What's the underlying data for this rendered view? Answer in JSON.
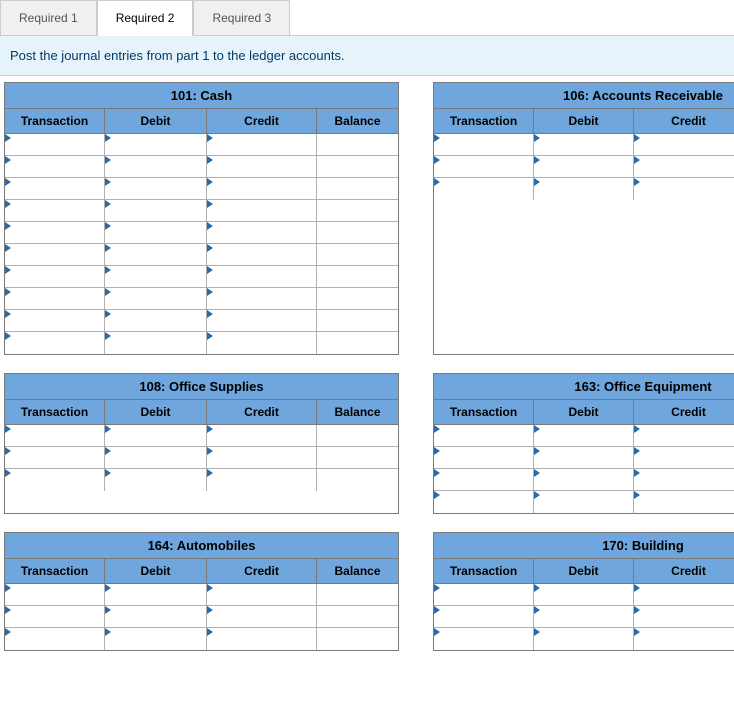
{
  "colors": {
    "header_bg": "#6ea6dd",
    "header_bg_alt": "#6ea6dd",
    "caret": "#2b6aa8",
    "border": "#7a7a7a",
    "row_border": "#b0b0b0",
    "tab_inactive_bg": "#f0f0f0",
    "instruction_bg": "#e6f3fb",
    "instruction_text": "#003a6a"
  },
  "tabs": [
    {
      "label": "Required 1",
      "active": false
    },
    {
      "label": "Required 2",
      "active": true
    },
    {
      "label": "Required 3",
      "active": false
    }
  ],
  "instruction": "Post the journal entries from part 1 to the ledger accounts.",
  "columns": {
    "transaction": "Transaction",
    "debit": "Debit",
    "credit": "Credit",
    "balance": "Balance"
  },
  "col_widths_left": {
    "transaction": 100,
    "debit": 102,
    "credit": 110,
    "balance": 81
  },
  "col_widths_right": {
    "transaction": 100,
    "debit": 100,
    "credit": 110,
    "balance": 108
  },
  "ledgers": [
    {
      "side": "left",
      "title": "101: Cash",
      "input_rows": 10,
      "blank_rows": 0
    },
    {
      "side": "right",
      "title": "106: Accounts Receivable",
      "input_rows": 3,
      "blank_rows": 7
    },
    {
      "side": "left",
      "title": "108: Office Supplies",
      "input_rows": 3,
      "blank_rows": 1
    },
    {
      "side": "right",
      "title": "163: Office Equipment",
      "input_rows": 4,
      "blank_rows": 0
    },
    {
      "side": "left",
      "title": "164: Automobiles",
      "input_rows": 3,
      "blank_rows": 0
    },
    {
      "side": "right",
      "title": "170: Building",
      "input_rows": 3,
      "blank_rows": 0
    }
  ]
}
